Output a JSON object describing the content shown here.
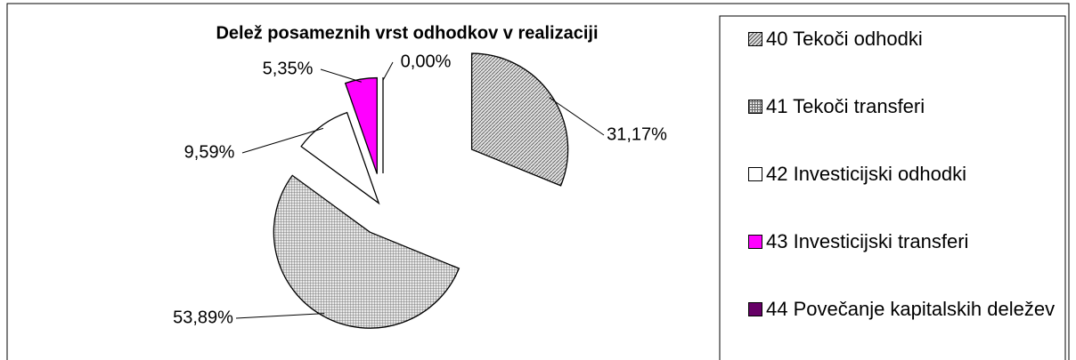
{
  "chart_data": {
    "type": "pie",
    "title": "Delež posameznih vrst odhodkov v realizaciji",
    "categories": [
      "40 Tekoči odhodki",
      "41 Tekoči transferi",
      "42 Investicijski odhodki",
      "43 Investicijski transferi",
      "44 Povečanje kapitalskih deležev"
    ],
    "values": [
      31.17,
      53.89,
      9.59,
      5.35,
      0.0
    ],
    "value_labels": [
      "31,17%",
      "53,89%",
      "9,59%",
      "5,35%",
      "0,00%"
    ],
    "colors": [
      "#cfcfcf",
      "#bdbdbd",
      "#ffffff",
      "#ff00ff",
      "#660066"
    ],
    "legend": "right"
  }
}
